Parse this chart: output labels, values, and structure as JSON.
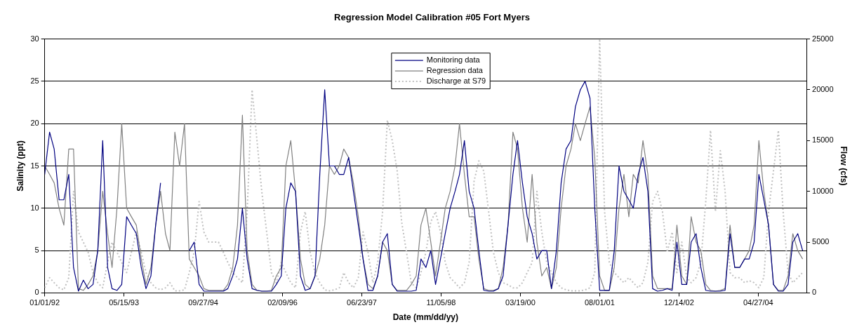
{
  "chart_data": {
    "type": "line",
    "title": "Regression Model Calibration #05 Fort Myers",
    "xlabel": "Date (mm/dd/yy)",
    "ylabel": "Salinity (ppt)",
    "y2label": "Flow (cfs)",
    "x": [
      "1992-01",
      "1992-02",
      "1992-03",
      "1992-04",
      "1992-05",
      "1992-06",
      "1992-07",
      "1992-08",
      "1992-09",
      "1992-10",
      "1992-11",
      "1992-12",
      "1993-01",
      "1993-02",
      "1993-03",
      "1993-04",
      "1993-05",
      "1993-06",
      "1993-07",
      "1993-08",
      "1993-09",
      "1993-10",
      "1993-11",
      "1993-12",
      "1994-01",
      "1994-02",
      "1994-03",
      "1994-04",
      "1994-05",
      "1994-06",
      "1994-07",
      "1994-08",
      "1994-09",
      "1994-10",
      "1994-11",
      "1994-12",
      "1995-01",
      "1995-02",
      "1995-03",
      "1995-04",
      "1995-05",
      "1995-06",
      "1995-07",
      "1995-08",
      "1995-09",
      "1995-10",
      "1995-11",
      "1995-12",
      "1996-01",
      "1996-02",
      "1996-03",
      "1996-04",
      "1996-05",
      "1996-06",
      "1996-07",
      "1996-08",
      "1996-09",
      "1996-10",
      "1996-11",
      "1996-12",
      "1997-01",
      "1997-02",
      "1997-03",
      "1997-04",
      "1997-05",
      "1997-06",
      "1997-07",
      "1997-08",
      "1997-09",
      "1997-10",
      "1997-11",
      "1997-12",
      "1998-01",
      "1998-02",
      "1998-03",
      "1998-04",
      "1998-05",
      "1998-06",
      "1998-07",
      "1998-08",
      "1998-09",
      "1998-10",
      "1998-11",
      "1998-12",
      "1999-01",
      "1999-02",
      "1999-03",
      "1999-04",
      "1999-05",
      "1999-06",
      "1999-07",
      "1999-08",
      "1999-09",
      "1999-10",
      "1999-11",
      "1999-12",
      "2000-01",
      "2000-02",
      "2000-03",
      "2000-04",
      "2000-05",
      "2000-06",
      "2000-07",
      "2000-08",
      "2000-09",
      "2000-10",
      "2000-11",
      "2000-12",
      "2001-01",
      "2001-02",
      "2001-03",
      "2001-04",
      "2001-05",
      "2001-06",
      "2001-07",
      "2001-08",
      "2001-09",
      "2001-10",
      "2001-11",
      "2001-12",
      "2002-01",
      "2002-02",
      "2002-03",
      "2002-04",
      "2002-05",
      "2002-06",
      "2002-07",
      "2002-08",
      "2002-09",
      "2002-10",
      "2002-11",
      "2002-12",
      "2003-01",
      "2003-02",
      "2003-03",
      "2003-04",
      "2003-05",
      "2003-06",
      "2003-07",
      "2003-08",
      "2003-09",
      "2003-10",
      "2003-11",
      "2003-12",
      "2004-01",
      "2004-02",
      "2004-03",
      "2004-04",
      "2004-05",
      "2004-06",
      "2004-07",
      "2004-08",
      "2004-09",
      "2004-10",
      "2004-11",
      "2004-12",
      "2005-01",
      "2005-02"
    ],
    "series": [
      {
        "name": "Monitoring data",
        "color": "#000080",
        "line_style": "solid",
        "values": [
          14,
          19,
          17,
          11,
          11,
          14,
          3,
          0.2,
          1.5,
          0.5,
          1,
          5,
          18,
          3,
          0.5,
          0.3,
          1,
          9,
          8,
          7,
          3,
          0.5,
          2,
          8,
          13,
          null,
          null,
          null,
          null,
          null,
          5,
          6,
          1,
          0.2,
          0.2,
          0.2,
          0.2,
          0.2,
          0.5,
          2,
          4,
          10,
          4,
          0.5,
          0.3,
          0.2,
          0.2,
          0.2,
          1,
          2,
          10,
          13,
          12,
          2,
          0.3,
          0.5,
          2,
          14,
          24,
          15,
          15,
          14,
          14,
          16,
          12,
          8,
          4,
          0.3,
          0.3,
          2,
          6,
          7,
          1,
          0.2,
          0.2,
          0.2,
          0.2,
          0.3,
          4,
          3,
          5,
          1,
          4,
          7,
          10,
          12,
          14,
          18,
          12,
          10,
          5,
          0.3,
          0.2,
          0.2,
          0.5,
          2,
          8,
          14,
          18,
          13,
          9,
          7,
          4,
          5,
          5,
          0.5,
          5,
          13,
          17,
          18,
          22,
          24,
          25,
          23,
          10,
          0.3,
          0.3,
          0.3,
          5,
          15,
          12,
          11,
          10,
          14,
          16,
          12,
          0.5,
          0.2,
          0.3,
          0.5,
          0.3,
          6,
          1,
          1,
          6,
          7,
          3,
          0.3,
          0.2,
          0.2,
          0.2,
          0.3,
          7,
          3,
          3,
          4,
          4,
          6,
          14,
          11,
          8,
          1,
          0.2,
          0.2,
          1,
          6,
          7,
          5
        ]
      },
      {
        "name": "Regression data",
        "color": "#808080",
        "line_style": "solid",
        "values": [
          15,
          14,
          13,
          10,
          8,
          17,
          17,
          0.5,
          0.3,
          1,
          2,
          5,
          12,
          7,
          3,
          10,
          20,
          10,
          9,
          8,
          4,
          1,
          3,
          8,
          12,
          7,
          5,
          19,
          15,
          20,
          4,
          3,
          2,
          0.5,
          0.3,
          0.3,
          0.3,
          0.3,
          1,
          3,
          8,
          21,
          5,
          1,
          0.3,
          0.2,
          0.2,
          0.3,
          2,
          3,
          15,
          18,
          12,
          4,
          1,
          0.5,
          2,
          4,
          8,
          15,
          14,
          15,
          17,
          16,
          13,
          9,
          4,
          1,
          0.5,
          2,
          6,
          5,
          1,
          0.3,
          0.3,
          0.3,
          1,
          2,
          8,
          10,
          6,
          2,
          6,
          10,
          12,
          15,
          20,
          14,
          9,
          9,
          4,
          0.5,
          0.3,
          0.3,
          0.5,
          3,
          8,
          19,
          17,
          10,
          6,
          14,
          6,
          2,
          3,
          0.5,
          3,
          10,
          15,
          17,
          20,
          18,
          20,
          22,
          16,
          2,
          0.3,
          0.3,
          3,
          10,
          14,
          9,
          14,
          13,
          18,
          14,
          2,
          0.5,
          0.5,
          0.5,
          0.5,
          8,
          2,
          1,
          9,
          6,
          5,
          1,
          0.3,
          0.2,
          0.3,
          0.5,
          8,
          3,
          3,
          4,
          5,
          8,
          18,
          12,
          8,
          1,
          0.3,
          0.3,
          2,
          7,
          5,
          4
        ]
      },
      {
        "name": "Discharge at S79",
        "color": "#c0c0c0",
        "line_style": "dotted",
        "axis": "y2",
        "values": [
          500,
          1500,
          1000,
          500,
          300,
          1500,
          10000,
          6000,
          5000,
          4000,
          2000,
          1000,
          500,
          3000,
          5000,
          4000,
          3000,
          2000,
          4000,
          6000,
          4000,
          2000,
          1000,
          500,
          300,
          500,
          1000,
          200,
          200,
          300,
          2000,
          4000,
          9000,
          6000,
          5000,
          5000,
          5000,
          4000,
          3000,
          2000,
          1500,
          1000,
          8000,
          20000,
          15000,
          10000,
          6000,
          2000,
          1000,
          3000,
          2000,
          1000,
          500,
          6000,
          8000,
          4000,
          2000,
          1000,
          300,
          200,
          300,
          500,
          2000,
          1000,
          500,
          1500,
          6000,
          4000,
          1000,
          3000,
          8000,
          17000,
          15000,
          12000,
          7000,
          4000,
          1000,
          500,
          2000,
          4000,
          7000,
          8000,
          6000,
          3000,
          1500,
          1000,
          500,
          1000,
          3000,
          11000,
          13000,
          12000,
          8000,
          4000,
          2000,
          1000,
          800,
          500,
          500,
          1000,
          2000,
          3000,
          10000,
          6000,
          3000,
          2000,
          1000,
          500,
          300,
          200,
          200,
          200,
          300,
          500,
          2000,
          25000,
          8000,
          3000,
          2000,
          1500,
          1000,
          1500,
          1000,
          500,
          1000,
          3000,
          9000,
          10000,
          8000,
          4000,
          6000,
          2000,
          5000,
          1500,
          1000,
          1500,
          3000,
          9000,
          16000,
          8000,
          14000,
          10000,
          2000,
          1500,
          1500,
          1000,
          1200,
          1000,
          500,
          1500,
          8000,
          12000,
          16000,
          8000,
          2000,
          1000,
          1500,
          2000
        ]
      }
    ],
    "xlim": [
      "1992-01-01",
      "2005-02-25"
    ],
    "xticks": [
      {
        "value": "1992-01-01",
        "label": "01/01/92"
      },
      {
        "value": "1993-05-15",
        "label": "05/15/93"
      },
      {
        "value": "1994-09-27",
        "label": "09/27/94"
      },
      {
        "value": "1996-02-09",
        "label": "02/09/96"
      },
      {
        "value": "1997-06-23",
        "label": "06/23/97"
      },
      {
        "value": "1998-11-05",
        "label": "11/05/98"
      },
      {
        "value": "2000-03-19",
        "label": "03/19/00"
      },
      {
        "value": "2001-08-01",
        "label": "08/01/01"
      },
      {
        "value": "2002-12-14",
        "label": "12/14/02"
      },
      {
        "value": "2004-04-27",
        "label": "04/27/04"
      }
    ],
    "ylim": [
      0,
      30
    ],
    "yticks": [
      0,
      5,
      10,
      15,
      20,
      25,
      30
    ],
    "y2lim": [
      0,
      25000
    ],
    "y2ticks": [
      0,
      5000,
      10000,
      15000,
      20000,
      25000
    ],
    "grid": "y",
    "legend": "top",
    "marker": "none"
  }
}
